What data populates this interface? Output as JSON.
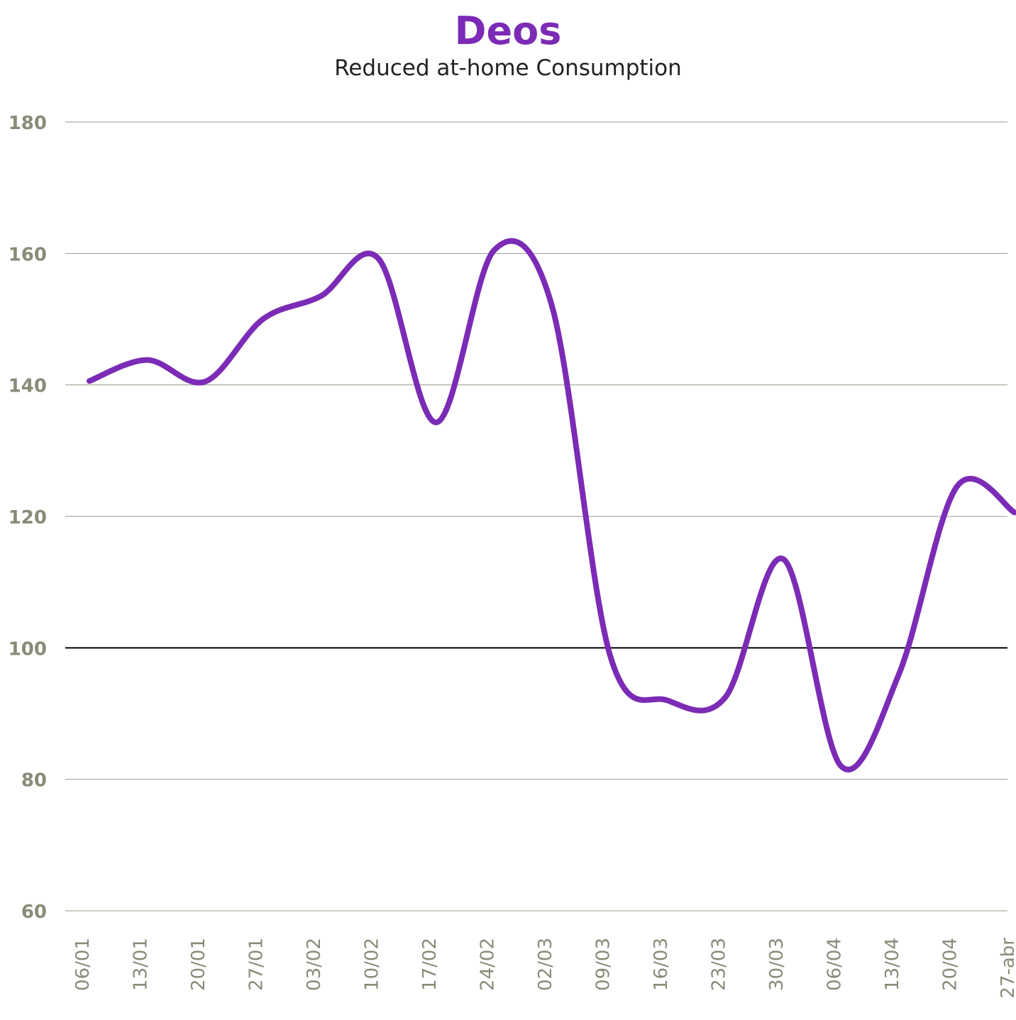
{
  "chart_data": {
    "type": "line",
    "title": "Deos",
    "subtitle": "Reduced at-home Consumption",
    "categories": [
      "06/01",
      "13/01",
      "20/01",
      "27/01",
      "03/02",
      "10/02",
      "17/02",
      "24/02",
      "02/03",
      "09/03",
      "16/03",
      "23/03",
      "30/03",
      "06/04",
      "13/04",
      "20/04",
      "27-abr"
    ],
    "series": [
      {
        "values": [
          140.6,
          143.8,
          140.5,
          150.0,
          153.5,
          159.2,
          134.3,
          160.5,
          152.0,
          99.0,
          92.0,
          92.5,
          113.5,
          82.0,
          96.0,
          124.5,
          120.6
        ]
      }
    ],
    "ylim": [
      60,
      180
    ],
    "yticks": [
      60,
      80,
      100,
      120,
      140,
      160,
      180
    ],
    "reference_line": 100,
    "grid": true,
    "colors": {
      "line": "#7B2BB5",
      "title": "#7B2BB5",
      "grid": "#9A9A86",
      "reference": "#000000",
      "tick_label": "#8A8A78"
    }
  }
}
